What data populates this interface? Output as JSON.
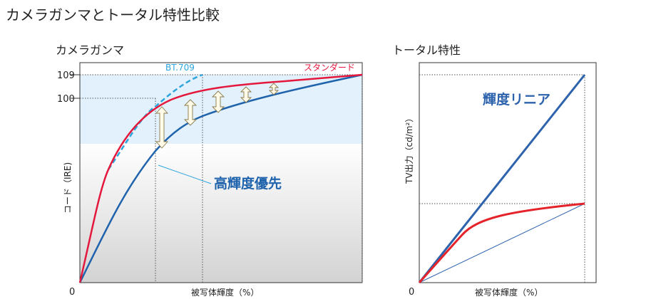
{
  "title": "カメラガンマとトータル特性比較",
  "left_panel": {
    "title": "カメラガンマ",
    "ylabel": "コード（IRE)",
    "xlabel": "被写体輝度（%）",
    "origin": "0",
    "y_ticks": [
      "109",
      "100"
    ],
    "legend_bt709": "BT.709",
    "legend_standard": "スタンダード",
    "annotation": "高輝度優先",
    "colors": {
      "bt709": "#2da4dc",
      "standard": "#e4183c",
      "high_priority": "#1f63ad",
      "highlight_band": "#e2f1fb"
    }
  },
  "right_panel": {
    "title": "トータル特性",
    "ylabel": "TV出力（cd/m²）",
    "xlabel": "被写体輝度（%）",
    "origin": "0",
    "annotation": "輝度リニア",
    "colors": {
      "linear": "#2d62ad",
      "curve": "#e4232b",
      "reference": "#2d62ad"
    }
  }
}
